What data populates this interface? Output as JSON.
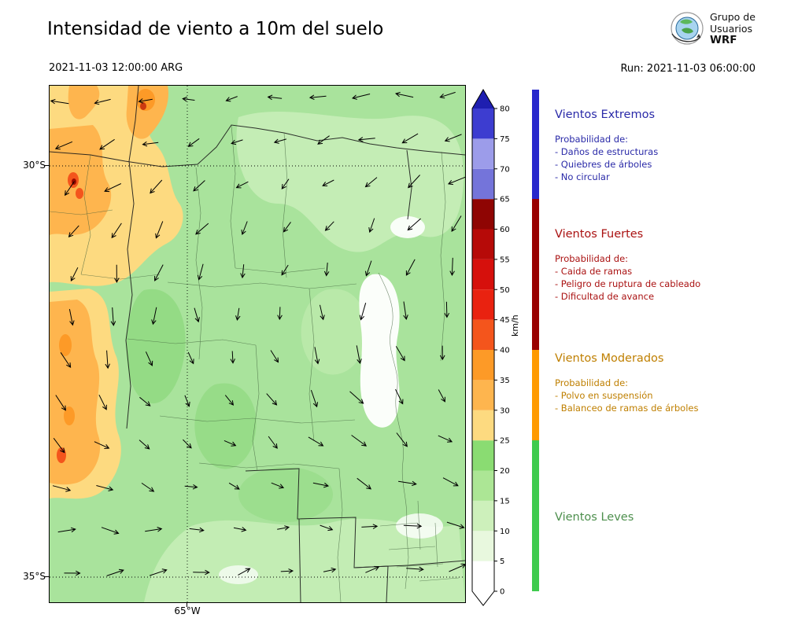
{
  "header": {
    "title": "Intensidad de viento a 10m del suelo",
    "valid_time": "2021-11-03 12:00:00 ARG",
    "run_label": "Run: 2021-11-03 06:00:00",
    "logo_lines": [
      "Grupo de",
      "Usuarios",
      "WRF"
    ]
  },
  "map_axes": {
    "lat_top": "30°S",
    "lat_bottom": "35°S",
    "lon_label": "65°W"
  },
  "colorbar": {
    "unit": "km/h",
    "tick_values": [
      0,
      5,
      10,
      15,
      20,
      25,
      30,
      35,
      40,
      45,
      50,
      55,
      60,
      65,
      70,
      75,
      80
    ],
    "segments": [
      {
        "from": 0,
        "to": 5,
        "color": "#ffffff"
      },
      {
        "from": 5,
        "to": 10,
        "color": "#e8f8de"
      },
      {
        "from": 10,
        "to": 15,
        "color": "#cdf0bb"
      },
      {
        "from": 15,
        "to": 20,
        "color": "#ace695"
      },
      {
        "from": 20,
        "to": 25,
        "color": "#8adc72"
      },
      {
        "from": 25,
        "to": 30,
        "color": "#fdda80"
      },
      {
        "from": 30,
        "to": 35,
        "color": "#feb54e"
      },
      {
        "from": 35,
        "to": 40,
        "color": "#fd9a27"
      },
      {
        "from": 40,
        "to": 45,
        "color": "#f4551c"
      },
      {
        "from": 45,
        "to": 50,
        "color": "#e92210"
      },
      {
        "from": 50,
        "to": 55,
        "color": "#d6100c"
      },
      {
        "from": 55,
        "to": 60,
        "color": "#b60a08"
      },
      {
        "from": 60,
        "to": 65,
        "color": "#8f0503"
      },
      {
        "from": 65,
        "to": 70,
        "color": "#7474da"
      },
      {
        "from": 70,
        "to": 75,
        "color": "#9c9cea"
      },
      {
        "from": 75,
        "to": 80,
        "color": "#3d3dd0"
      }
    ],
    "over_color": "#1e1eb0",
    "under_color": "#ffffff"
  },
  "categories": [
    {
      "title": "Vientos Extremos",
      "text_color": "#2a2aa8",
      "strip_color": "#2828cc",
      "range_kmh": [
        65,
        85
      ],
      "prob_label": "Probabilidad de:",
      "items": [
        "- Daños de estructuras",
        "- Quiebres de árboles",
        "- No circular"
      ]
    },
    {
      "title": "Vientos Fuertes",
      "text_color": "#aa1212",
      "strip_color": "#990000",
      "range_kmh": [
        40,
        65
      ],
      "prob_label": "Probabilidad de:",
      "items": [
        "- Caida de ramas",
        "- Peligro de ruptura de cableado",
        "- Dificultad de avance"
      ]
    },
    {
      "title": "Vientos Moderados",
      "text_color": "#bf7f00",
      "strip_color": "#ff9a00",
      "range_kmh": [
        25,
        40
      ],
      "prob_label": "Probabilidad de:",
      "items": [
        "- Polvo en suspensión",
        "- Balanceo de ramas de árboles"
      ]
    },
    {
      "title": "Vientos Leves",
      "text_color": "#4d8f4d",
      "strip_color": "#3ecb4e",
      "range_kmh": [
        0,
        25
      ],
      "prob_label": "",
      "items": []
    }
  ]
}
